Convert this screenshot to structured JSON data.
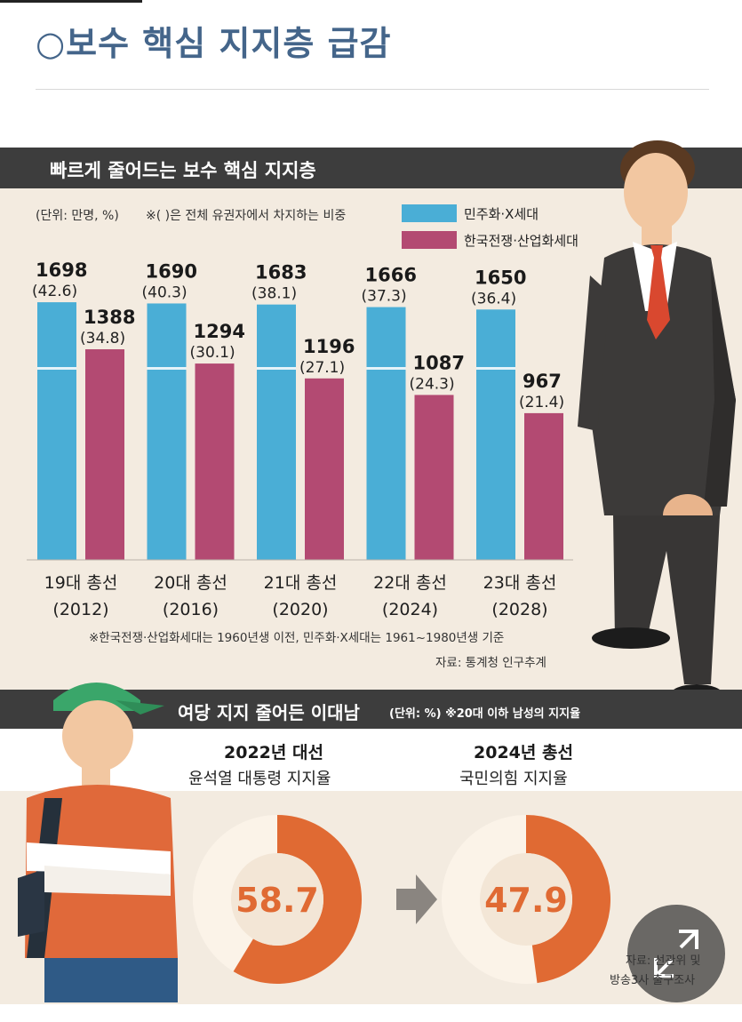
{
  "headline": "○보수 핵심 지지층 급감",
  "section1": {
    "title": "빠르게 줄어드는 보수 핵심 지지층",
    "unit_note": "(단위: 만명, %)",
    "share_note": "※( )은 전체 유권자에서 차지하는 비중",
    "footnote": "※한국전쟁·산업화세대는 1960년생 이전, 민주화·X세대는 1961~1980년생 기준",
    "source": "자료: 통계청 인구추계"
  },
  "chart_data": [
    {
      "type": "bar",
      "categories": [
        "19대 총선",
        "20대 총선",
        "21대 총선",
        "22대 총선",
        "23대 총선"
      ],
      "category_years": [
        "(2012)",
        "(2016)",
        "(2020)",
        "(2024)",
        "(2028)"
      ],
      "series": [
        {
          "name": "민주화·X세대",
          "color": "#4aaed6",
          "values": [
            1698,
            1690,
            1683,
            1666,
            1650
          ],
          "shares": [
            "(42.6)",
            "(40.3)",
            "(38.1)",
            "(37.3)",
            "(36.4)"
          ]
        },
        {
          "name": "한국전쟁·산업화세대",
          "color": "#b34a72",
          "values": [
            1388,
            1294,
            1196,
            1087,
            967
          ],
          "shares": [
            "(34.8)",
            "(30.1)",
            "(27.1)",
            "(24.3)",
            "(21.4)"
          ]
        }
      ],
      "ylim": [
        0,
        2050
      ]
    },
    {
      "type": "pie",
      "group": "2022년 대선",
      "label": "윤석열 대통령 지지율",
      "value": 58.7,
      "max": 100
    },
    {
      "type": "pie",
      "group": "2024년 총선",
      "label": "국민의힘 지지율",
      "value": 47.9,
      "max": 100
    }
  ],
  "section2": {
    "title": "여당 지지 줄어든 이대남",
    "note": "(단위: %) ※20대 이하 남성의 지지율",
    "source_line1": "자료: 선관위 및",
    "source_line2": "방송3사 출구조사"
  },
  "colors": {
    "header_bar": "#3d3d3d",
    "panel_bg": "#f3ebe0",
    "donut_fill": "#e06a33",
    "donut_track": "#fbf3e8",
    "headline": "#44658a"
  }
}
